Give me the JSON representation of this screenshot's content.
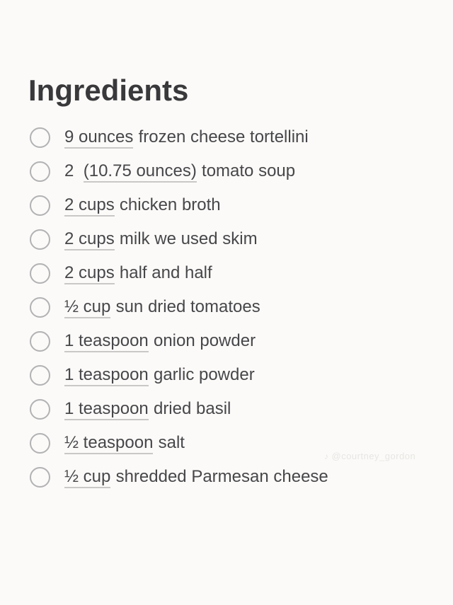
{
  "page": {
    "title": "Ingredients",
    "background_color": "#fbfaf8"
  },
  "colors": {
    "title_text": "#39393c",
    "body_text": "#47474a",
    "checkbox_border": "#b2b2b4",
    "quantity_underline": "#c9c8c6",
    "watermark_text": "#e7e6e3"
  },
  "ingredients": {
    "checkbox_state": "unchecked",
    "items": [
      {
        "prefix": "",
        "quantity": "9 ounces",
        "name": "frozen cheese tortellini"
      },
      {
        "prefix": "2 ",
        "quantity": "(10.75 ounces)",
        "name": "tomato soup"
      },
      {
        "prefix": "",
        "quantity": "2 cups",
        "name": "chicken broth"
      },
      {
        "prefix": "",
        "quantity": "2 cups",
        "name": "milk we used skim"
      },
      {
        "prefix": "",
        "quantity": "2 cups",
        "name": "half and half"
      },
      {
        "prefix": "",
        "quantity": "½ cup",
        "name": "sun dried tomatoes"
      },
      {
        "prefix": "",
        "quantity": "1 teaspoon",
        "name": "onion powder"
      },
      {
        "prefix": "",
        "quantity": "1 teaspoon",
        "name": "garlic powder"
      },
      {
        "prefix": "",
        "quantity": "1 teaspoon",
        "name": "dried basil"
      },
      {
        "prefix": "",
        "quantity": "½ teaspoon",
        "name": "salt"
      },
      {
        "prefix": "",
        "quantity": "½ cup",
        "name": "shredded Parmesan cheese"
      }
    ]
  },
  "watermark": {
    "icon": "♪",
    "text": "@courtney_gordon"
  }
}
